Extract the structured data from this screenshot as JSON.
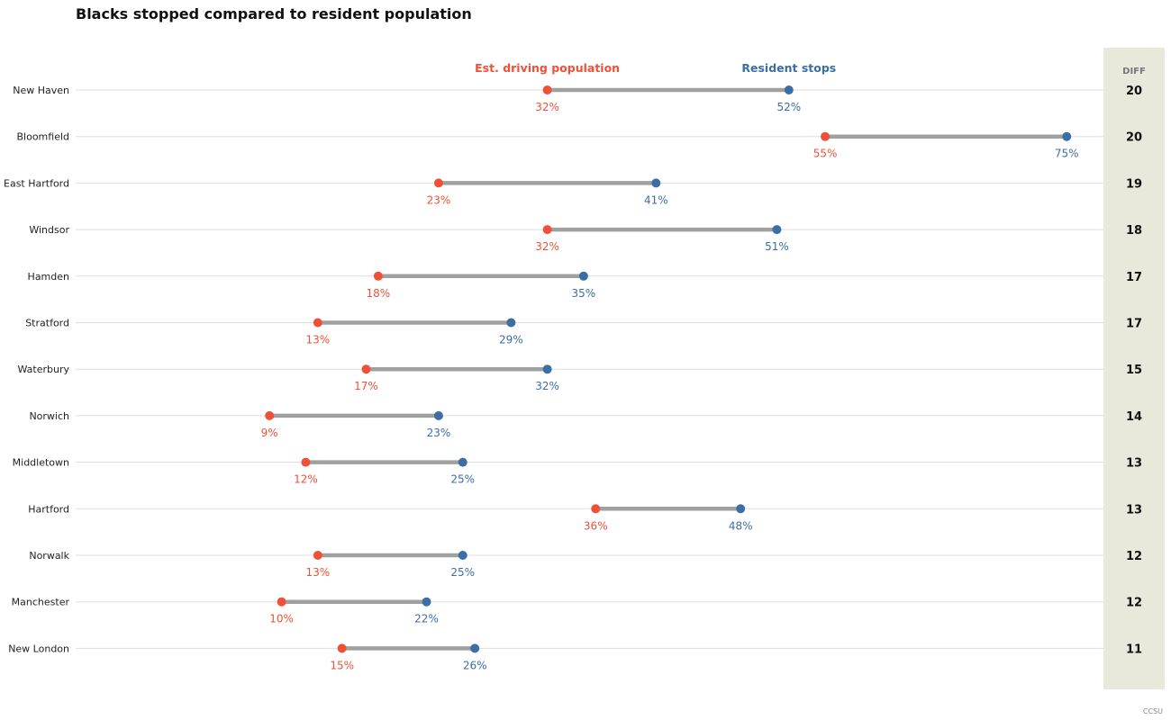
{
  "title": "Blacks stopped compared to resident population",
  "source": "CCSU",
  "colors": {
    "driving": "#f05038",
    "resident": "#3b6ea5",
    "connector": "#a0a0a0",
    "gridline": "#dddddd",
    "diff_panel": "#e8e9da"
  },
  "chart_data": {
    "type": "dumbbell",
    "xlim": [
      0,
      80
    ],
    "diff_header": "DIFF",
    "series": [
      {
        "name": "Est. driving population",
        "key": "driving"
      },
      {
        "name": "Resident stops",
        "key": "resident"
      }
    ],
    "rows": [
      {
        "city": "New Haven",
        "driving": 32,
        "resident": 52,
        "diff": 20
      },
      {
        "city": "Bloomfield",
        "driving": 55,
        "resident": 75,
        "diff": 20
      },
      {
        "city": "East Hartford",
        "driving": 23,
        "resident": 41,
        "diff": 19
      },
      {
        "city": "Windsor",
        "driving": 32,
        "resident": 51,
        "diff": 18
      },
      {
        "city": "Hamden",
        "driving": 18,
        "resident": 35,
        "diff": 17
      },
      {
        "city": "Stratford",
        "driving": 13,
        "resident": 29,
        "diff": 17
      },
      {
        "city": "Waterbury",
        "driving": 17,
        "resident": 32,
        "diff": 15
      },
      {
        "city": "Norwich",
        "driving": 9,
        "resident": 23,
        "diff": 14
      },
      {
        "city": "Middletown",
        "driving": 12,
        "resident": 25,
        "diff": 13
      },
      {
        "city": "Hartford",
        "driving": 36,
        "resident": 48,
        "diff": 13
      },
      {
        "city": "Norwalk",
        "driving": 13,
        "resident": 25,
        "diff": 12
      },
      {
        "city": "Manchester",
        "driving": 10,
        "resident": 22,
        "diff": 12
      },
      {
        "city": "New London",
        "driving": 15,
        "resident": 26,
        "diff": 11
      }
    ]
  }
}
